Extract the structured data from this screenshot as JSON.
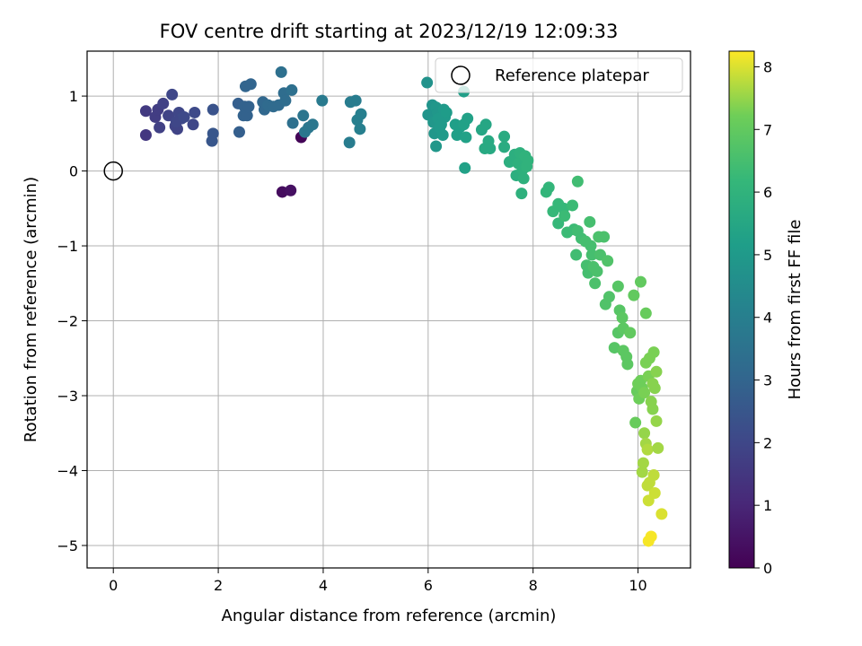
{
  "chart_data": {
    "type": "scatter",
    "title": "FOV centre drift starting at 2023/12/19 12:09:33",
    "xlabel": "Angular distance from reference (arcmin)",
    "ylabel": "Rotation from reference (arcmin)",
    "xlim": [
      -0.5,
      11.0
    ],
    "ylim": [
      -5.3,
      1.6
    ],
    "xticks": [
      0,
      2,
      4,
      6,
      8,
      10
    ],
    "xtick_labels": [
      "0",
      "2",
      "4",
      "6",
      "8",
      "10"
    ],
    "yticks": [
      -5,
      -4,
      -3,
      -2,
      -1,
      0,
      1
    ],
    "ytick_labels": [
      "−5",
      "−4",
      "−3",
      "−2",
      "−1",
      "0",
      "1"
    ],
    "grid": true,
    "legend": {
      "position": "top-right",
      "entries": [
        "Reference platepar"
      ]
    },
    "reference_point": {
      "x": 0,
      "y": 0,
      "marker": "open-circle"
    },
    "colorbar": {
      "label": "Hours from first FF file",
      "range": [
        0,
        8.25
      ],
      "ticks": [
        0,
        1,
        2,
        3,
        4,
        5,
        6,
        7,
        8
      ],
      "tick_labels": [
        "0",
        "1",
        "2",
        "3",
        "4",
        "5",
        "6",
        "7",
        "8"
      ],
      "colormap": "viridis"
    },
    "points": [
      [
        3.58,
        0.45,
        0.1
      ],
      [
        3.22,
        -0.28,
        0.3
      ],
      [
        3.38,
        -0.26,
        0.4
      ],
      [
        0.62,
        0.48,
        1.5
      ],
      [
        0.62,
        0.8,
        1.6
      ],
      [
        0.8,
        0.72,
        1.7
      ],
      [
        0.88,
        0.58,
        1.8
      ],
      [
        0.85,
        0.82,
        1.7
      ],
      [
        0.95,
        0.9,
        1.8
      ],
      [
        1.05,
        0.74,
        1.9
      ],
      [
        1.12,
        1.02,
        2.0
      ],
      [
        1.18,
        0.6,
        1.9
      ],
      [
        1.22,
        0.56,
        1.9
      ],
      [
        1.25,
        0.78,
        2.0
      ],
      [
        1.3,
        0.7,
        2.1
      ],
      [
        1.2,
        0.66,
        2.0
      ],
      [
        1.35,
        0.72,
        2.1
      ],
      [
        1.52,
        0.62,
        2.0
      ],
      [
        1.55,
        0.78,
        2.1
      ],
      [
        1.9,
        0.82,
        2.4
      ],
      [
        1.9,
        0.5,
        2.5
      ],
      [
        1.88,
        0.4,
        2.5
      ],
      [
        2.38,
        0.9,
        2.8
      ],
      [
        2.4,
        0.52,
        2.8
      ],
      [
        2.48,
        0.74,
        2.9
      ],
      [
        2.5,
        0.86,
        2.9
      ],
      [
        2.52,
        1.13,
        3.0
      ],
      [
        2.55,
        0.74,
        2.9
      ],
      [
        2.58,
        0.86,
        2.9
      ],
      [
        2.62,
        1.16,
        3.0
      ],
      [
        2.85,
        0.92,
        3.1
      ],
      [
        2.88,
        0.82,
        3.1
      ],
      [
        2.95,
        0.88,
        3.2
      ],
      [
        3.05,
        0.86,
        3.2
      ],
      [
        3.15,
        0.88,
        3.2
      ],
      [
        3.2,
        1.32,
        3.4
      ],
      [
        3.25,
        1.04,
        3.3
      ],
      [
        3.28,
        0.94,
        3.3
      ],
      [
        3.4,
        1.08,
        3.4
      ],
      [
        3.42,
        0.64,
        3.4
      ],
      [
        3.62,
        0.74,
        3.6
      ],
      [
        3.65,
        0.52,
        3.7
      ],
      [
        3.72,
        0.58,
        3.7
      ],
      [
        3.8,
        0.62,
        3.7
      ],
      [
        3.98,
        0.94,
        3.8
      ],
      [
        4.5,
        0.38,
        3.9
      ],
      [
        4.52,
        0.92,
        3.9
      ],
      [
        4.62,
        0.94,
        3.9
      ],
      [
        4.65,
        0.68,
        4.0
      ],
      [
        4.7,
        0.56,
        4.0
      ],
      [
        4.72,
        0.76,
        4.0
      ],
      [
        5.98,
        1.18,
        4.7
      ],
      [
        6.0,
        0.75,
        4.8
      ],
      [
        6.08,
        0.88,
        4.8
      ],
      [
        6.1,
        0.65,
        4.9
      ],
      [
        6.12,
        0.5,
        4.9
      ],
      [
        6.15,
        0.85,
        4.9
      ],
      [
        6.15,
        0.33,
        4.9
      ],
      [
        6.18,
        0.78,
        4.9
      ],
      [
        6.2,
        0.7,
        5.0
      ],
      [
        6.22,
        0.58,
        5.0
      ],
      [
        6.25,
        0.62,
        5.0
      ],
      [
        6.28,
        0.48,
        5.0
      ],
      [
        6.3,
        0.82,
        5.0
      ],
      [
        6.32,
        0.72,
        5.0
      ],
      [
        6.35,
        0.78,
        5.1
      ],
      [
        6.52,
        0.62,
        5.2
      ],
      [
        6.55,
        0.48,
        5.2
      ],
      [
        6.6,
        0.58,
        5.2
      ],
      [
        6.68,
        0.62,
        5.3
      ],
      [
        6.7,
        0.04,
        5.3
      ],
      [
        6.72,
        0.45,
        5.3
      ],
      [
        6.75,
        0.7,
        5.3
      ],
      [
        6.68,
        1.06,
        5.2
      ],
      [
        7.02,
        0.55,
        5.5
      ],
      [
        7.1,
        0.62,
        5.5
      ],
      [
        7.08,
        0.3,
        5.6
      ],
      [
        7.15,
        0.4,
        5.6
      ],
      [
        7.18,
        0.3,
        5.6
      ],
      [
        7.45,
        0.46,
        5.7
      ],
      [
        7.45,
        0.32,
        5.7
      ],
      [
        7.55,
        0.12,
        5.8
      ],
      [
        7.65,
        0.22,
        5.8
      ],
      [
        7.68,
        -0.06,
        5.8
      ],
      [
        7.72,
        0.1,
        5.9
      ],
      [
        7.75,
        0.24,
        5.9
      ],
      [
        7.78,
        -0.3,
        5.9
      ],
      [
        7.8,
        0.02,
        5.9
      ],
      [
        7.82,
        -0.1,
        5.9
      ],
      [
        7.85,
        0.2,
        6.0
      ],
      [
        7.88,
        0.06,
        6.0
      ],
      [
        7.9,
        0.14,
        6.0
      ],
      [
        8.25,
        -0.28,
        6.1
      ],
      [
        8.3,
        -0.22,
        6.1
      ],
      [
        8.38,
        -0.54,
        6.2
      ],
      [
        8.48,
        -0.44,
        6.2
      ],
      [
        8.48,
        -0.7,
        6.2
      ],
      [
        8.58,
        -0.5,
        6.2
      ],
      [
        8.6,
        -0.6,
        6.3
      ],
      [
        8.65,
        -0.82,
        6.3
      ],
      [
        8.75,
        -0.46,
        6.3
      ],
      [
        8.78,
        -0.78,
        6.3
      ],
      [
        8.82,
        -1.12,
        6.4
      ],
      [
        8.85,
        -0.14,
        6.4
      ],
      [
        8.85,
        -0.8,
        6.4
      ],
      [
        8.92,
        -0.9,
        6.4
      ],
      [
        9.0,
        -0.94,
        6.5
      ],
      [
        9.02,
        -1.26,
        6.5
      ],
      [
        9.05,
        -1.36,
        6.5
      ],
      [
        9.08,
        -0.68,
        6.5
      ],
      [
        9.1,
        -1.0,
        6.5
      ],
      [
        9.12,
        -1.12,
        6.5
      ],
      [
        9.15,
        -1.28,
        6.6
      ],
      [
        9.18,
        -1.5,
        6.6
      ],
      [
        9.22,
        -1.34,
        6.6
      ],
      [
        9.25,
        -0.88,
        6.6
      ],
      [
        9.28,
        -1.12,
        6.6
      ],
      [
        9.35,
        -0.88,
        6.6
      ],
      [
        9.38,
        -1.78,
        6.7
      ],
      [
        9.42,
        -1.2,
        6.7
      ],
      [
        9.45,
        -1.68,
        6.7
      ],
      [
        9.55,
        -2.36,
        6.8
      ],
      [
        9.62,
        -1.54,
        6.8
      ],
      [
        9.62,
        -2.16,
        6.8
      ],
      [
        9.65,
        -1.86,
        6.8
      ],
      [
        9.7,
        -1.96,
        6.9
      ],
      [
        9.72,
        -2.1,
        6.9
      ],
      [
        9.72,
        -2.4,
        6.9
      ],
      [
        9.78,
        -2.48,
        6.9
      ],
      [
        9.8,
        -2.58,
        6.9
      ],
      [
        9.85,
        -2.16,
        7.0
      ],
      [
        9.92,
        -1.66,
        7.0
      ],
      [
        9.95,
        -3.36,
        7.1
      ],
      [
        9.98,
        -2.94,
        7.1
      ],
      [
        10.0,
        -2.84,
        7.2
      ],
      [
        10.02,
        -3.04,
        7.2
      ],
      [
        10.05,
        -1.48,
        7.0
      ],
      [
        10.05,
        -2.8,
        7.2
      ],
      [
        10.08,
        -2.9,
        7.2
      ],
      [
        10.08,
        -4.02,
        7.6
      ],
      [
        10.1,
        -3.9,
        7.6
      ],
      [
        10.12,
        -3.5,
        7.5
      ],
      [
        10.12,
        -2.96,
        7.3
      ],
      [
        10.15,
        -1.9,
        7.1
      ],
      [
        10.15,
        -2.56,
        7.3
      ],
      [
        10.15,
        -3.64,
        7.6
      ],
      [
        10.18,
        -3.72,
        7.7
      ],
      [
        10.18,
        -4.2,
        7.8
      ],
      [
        10.2,
        -2.74,
        7.3
      ],
      [
        10.2,
        -4.4,
        7.9
      ],
      [
        10.2,
        -4.94,
        8.2
      ],
      [
        10.22,
        -2.5,
        7.3
      ],
      [
        10.22,
        -4.16,
        7.8
      ],
      [
        10.25,
        -3.08,
        7.4
      ],
      [
        10.25,
        -4.88,
        8.2
      ],
      [
        10.28,
        -2.84,
        7.4
      ],
      [
        10.28,
        -3.18,
        7.4
      ],
      [
        10.3,
        -2.42,
        7.3
      ],
      [
        10.3,
        -4.06,
        7.8
      ],
      [
        10.32,
        -2.9,
        7.4
      ],
      [
        10.32,
        -4.3,
        7.9
      ],
      [
        10.35,
        -3.34,
        7.5
      ],
      [
        10.35,
        -2.68,
        7.4
      ],
      [
        10.38,
        -3.7,
        7.6
      ],
      [
        10.45,
        -4.58,
        8.0
      ]
    ]
  }
}
